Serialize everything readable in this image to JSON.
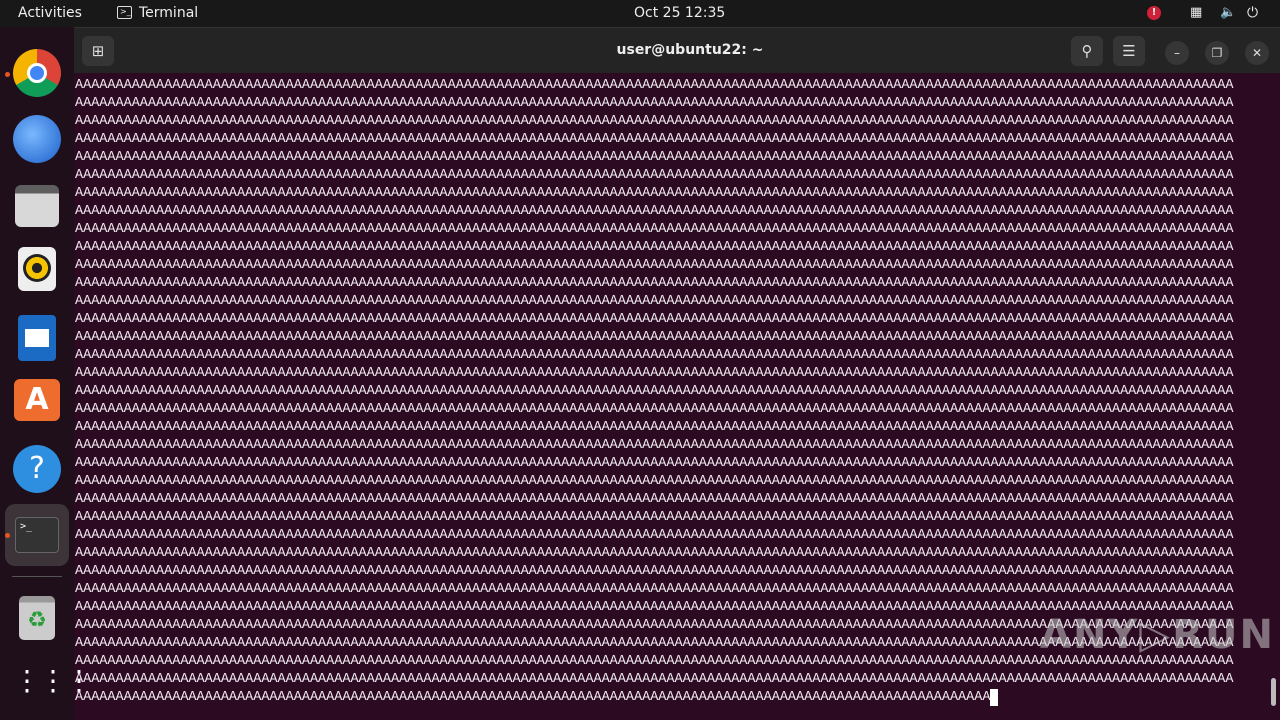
{
  "topbar": {
    "activities": "Activities",
    "app_name": "Terminal",
    "clock": "Oct 25  12:35",
    "icons": [
      "alert-icon",
      "network-icon",
      "volume-icon",
      "power-icon"
    ]
  },
  "dock": {
    "items": [
      "Google Chrome",
      "Thunderbird",
      "Files",
      "Rhythmbox",
      "LibreOffice Writer",
      "Ubuntu Software",
      "Help",
      "Terminal",
      "Trash",
      "Show Applications"
    ]
  },
  "window": {
    "title": "user@ubuntu22: ~",
    "buttons": [
      "new-tab",
      "search",
      "menu",
      "minimize",
      "maximize",
      "close"
    ]
  },
  "terminal": {
    "full_line": "AAAAAAAAAAAAAAAAAAAAAAAAAAAAAAAAAAAAAAAAAAAAAAAAAAAAAAAAAAAAAAAAAAAAAAAAAAAAAAAAAAAAAAAAAAAAAAAAAAAAAAAAAAAAAAAAAAAAAAAAAAAAAAAAAAAAAAAAAAAAAAA",
    "full_line_count": 34,
    "last_line": "AAAAAAAAAAAAAAAAAAAAAAAAAAAAAAAAAAAAAAAAAAAAAAAAAAAAAAAAAAAAAAAAAAAAAAAAAAAAAAAAAAAAAAAAAAAAAAAAAAAAAAAAAAAAAAAAA"
  },
  "watermark": "ANY RUN"
}
